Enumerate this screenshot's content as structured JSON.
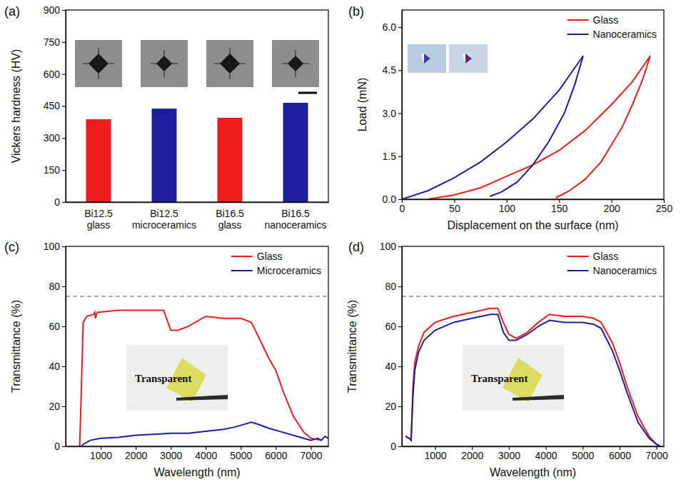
{
  "chart_data": [
    {
      "type": "bar",
      "panel": "(a)",
      "y_label": "Vickers hardness (HV)",
      "categories": [
        "Bi12.5 glass",
        "Bi12.5 microceramics",
        "Bi16.5 glass",
        "Bi16.5 nanoceramics"
      ],
      "values": [
        388,
        438,
        395,
        465
      ],
      "colors": [
        "#ee1c1c",
        "#1e1e9c",
        "#ee1c1c",
        "#1e1e9c"
      ],
      "ylim": [
        0,
        900
      ],
      "yticks": [
        0,
        150,
        300,
        450,
        600,
        750,
        900
      ],
      "grid": false
    },
    {
      "type": "line",
      "panel": "(b)",
      "x_label": "Displacement on the surface (nm)",
      "y_label": "Load (mN)",
      "xlim": [
        0,
        250
      ],
      "xticks": [
        0,
        50,
        100,
        150,
        200,
        250
      ],
      "ylim": [
        0,
        6.6
      ],
      "yticks": [
        {
          "value": 0,
          "label": "0.0"
        },
        1.5,
        {
          "value": 3,
          "label": "3.0"
        },
        4.5,
        {
          "value": 6,
          "label": "6.0"
        }
      ],
      "grid": false,
      "legend": "top-right",
      "series": [
        {
          "name": "Glass",
          "color": "#ee1c1c",
          "x": [
            25,
            50,
            75,
            100,
            125,
            150,
            175,
            200,
            220,
            237,
            230,
            220,
            210,
            200,
            190,
            175,
            160,
            147
          ],
          "values": [
            0,
            0.15,
            0.4,
            0.8,
            1.2,
            1.7,
            2.4,
            3.3,
            4.1,
            5.0,
            4.2,
            3.3,
            2.5,
            1.9,
            1.3,
            0.7,
            0.3,
            0.05
          ]
        },
        {
          "name": "Nanoceramics",
          "color": "#1e1e9c",
          "x": [
            0,
            25,
            50,
            75,
            100,
            125,
            150,
            173,
            165,
            155,
            140,
            125,
            110,
            95,
            84
          ],
          "values": [
            0,
            0.3,
            0.75,
            1.3,
            2.0,
            2.8,
            3.8,
            5.0,
            4.0,
            3.0,
            2.0,
            1.2,
            0.6,
            0.25,
            0.1
          ]
        }
      ]
    },
    {
      "type": "line",
      "panel": "(c)",
      "x_label": "Wavelength (nm)",
      "y_label": "Transmittance (%)",
      "xlim": [
        0,
        7500
      ],
      "xticks": [
        1000,
        2000,
        3000,
        4000,
        5000,
        6000,
        7000
      ],
      "ylim": [
        0,
        100
      ],
      "yticks": [
        0,
        20,
        40,
        60,
        80,
        100
      ],
      "grid": false,
      "legend": "top-right",
      "reference_line": 75,
      "annotations": [
        "Transparent"
      ],
      "series": [
        {
          "name": "Glass",
          "color": "#ee1c1c",
          "x": [
            400,
            450,
            500,
            600,
            800,
            830,
            850,
            900,
            1500,
            2000,
            2500,
            2800,
            2900,
            3000,
            3200,
            3500,
            4000,
            4500,
            5000,
            5300,
            5500,
            5800,
            6000,
            6200,
            6500,
            6800,
            7000,
            7300
          ],
          "values": [
            0,
            30,
            62,
            65,
            66,
            67,
            64,
            67,
            68,
            68,
            68,
            68,
            63,
            58,
            58,
            60,
            65,
            64,
            64,
            62,
            55,
            44,
            38,
            28,
            15,
            7,
            4,
            3
          ]
        },
        {
          "name": "Microceramics",
          "color": "#1e1e9c",
          "x": [
            450,
            500,
            700,
            1000,
            1500,
            2000,
            2500,
            3000,
            3500,
            4000,
            4500,
            4800,
            5000,
            5300,
            5500,
            5800,
            6200,
            6600,
            7000,
            7200,
            7300,
            7400,
            7500
          ],
          "values": [
            0,
            1,
            3,
            4,
            4.5,
            5.5,
            6,
            6.5,
            6.5,
            7.5,
            8.5,
            9.5,
            10.5,
            12,
            11,
            9,
            7,
            5,
            3,
            4,
            3,
            5,
            4
          ]
        }
      ]
    },
    {
      "type": "line",
      "panel": "(d)",
      "x_label": "Wavelength (nm)",
      "y_label": "Transmittance (%)",
      "xlim": [
        100,
        7200
      ],
      "xticks": [
        1000,
        2000,
        3000,
        4000,
        5000,
        6000,
        7000
      ],
      "ylim": [
        0,
        100
      ],
      "yticks": [
        0,
        20,
        40,
        60,
        80,
        100
      ],
      "grid": false,
      "legend": "top-right",
      "reference_line": 75,
      "annotations": [
        "Transparent"
      ],
      "series": [
        {
          "name": "Glass",
          "color": "#ee1c1c",
          "x": [
            200,
            300,
            350,
            400,
            450,
            550,
            700,
            1000,
            1500,
            2000,
            2500,
            2700,
            2850,
            3000,
            3200,
            3500,
            3800,
            4100,
            4500,
            5000,
            5300,
            5500,
            5800,
            6000,
            6200,
            6500,
            6800,
            7000,
            7100
          ],
          "values": [
            5,
            4,
            3,
            30,
            42,
            50,
            57,
            62,
            65,
            67,
            69,
            69,
            62,
            56,
            54,
            57,
            62,
            66,
            65,
            65,
            64,
            62,
            52,
            42,
            30,
            15,
            5,
            1,
            0
          ]
        },
        {
          "name": "Nanoceramics",
          "color": "#1e1e9c",
          "x": [
            200,
            300,
            350,
            400,
            450,
            550,
            700,
            1000,
            1500,
            2000,
            2500,
            2700,
            2850,
            3000,
            3200,
            3500,
            3800,
            4100,
            4500,
            5000,
            5300,
            5500,
            5800,
            6000,
            6200,
            6500,
            6800,
            7000,
            7100
          ],
          "values": [
            5,
            4,
            3,
            25,
            38,
            47,
            53,
            58,
            62,
            64,
            66,
            66,
            57,
            53,
            53,
            56,
            60,
            63,
            62,
            62,
            61,
            59,
            48,
            38,
            27,
            12,
            4,
            1,
            0
          ]
        }
      ]
    }
  ]
}
